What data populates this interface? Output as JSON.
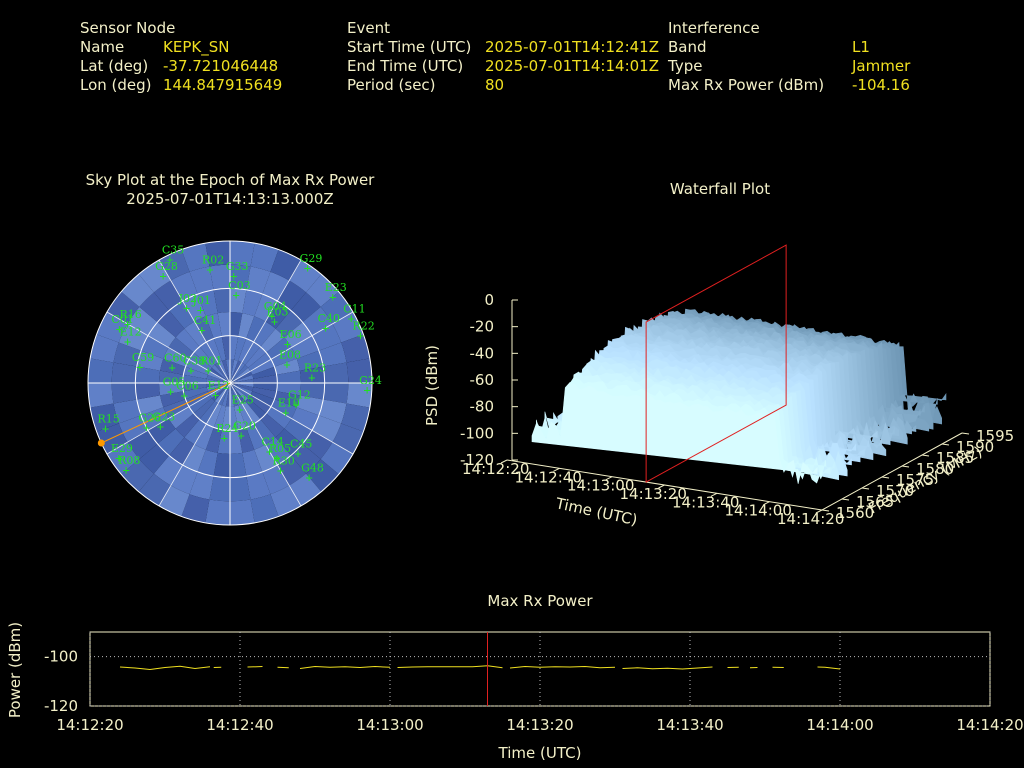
{
  "header": {
    "sensor": {
      "heading": "Sensor Node",
      "name_label": "Name",
      "name_value": "KEPK_SN",
      "lat_label": "Lat (deg)",
      "lat_value": "-37.721046448",
      "lon_label": "Lon (deg)",
      "lon_value": "144.847915649"
    },
    "event": {
      "heading": "Event",
      "start_label": "Start Time (UTC)",
      "start_value": "2025-07-01T14:12:41Z",
      "end_label": "End Time (UTC)",
      "end_value": "2025-07-01T14:14:01Z",
      "period_label": "Period (sec)",
      "period_value": "80"
    },
    "interference": {
      "heading": "Interference",
      "band_label": "Band",
      "band_value": "L1",
      "type_label": "Type",
      "type_value": "Jammer",
      "power_label": "Max Rx Power (dBm)",
      "power_value": "-104.16"
    }
  },
  "colors": {
    "label": "#f3f0c8",
    "value": "#f0e020",
    "satellite": "#22e022",
    "marker": "#ff9900",
    "cursor": "#e02020",
    "background": "#000000"
  },
  "chart_data": [
    {
      "type": "scatter",
      "title": "Sky Plot at the Epoch of Max Rx Power",
      "subtitle": "2025-07-01T14:13:13.000Z",
      "grid": true,
      "elevation_rings_deg": [
        0,
        30,
        60
      ],
      "points": [
        {
          "name": "G29",
          "az": 34,
          "el": 2
        },
        {
          "name": "E23",
          "az": 50,
          "el": 5
        },
        {
          "name": "C11",
          "az": 62,
          "el": 3
        },
        {
          "name": "R22",
          "az": 70,
          "el": 2
        },
        {
          "name": "C40",
          "az": 60,
          "el": 20
        },
        {
          "name": "C35",
          "az": 334,
          "el": 3
        },
        {
          "name": "G28",
          "az": 328,
          "el": 10
        },
        {
          "name": "R02",
          "az": 350,
          "el": 17
        },
        {
          "name": "G33",
          "az": 2,
          "el": 22
        },
        {
          "name": "C03",
          "az": 4,
          "el": 34
        },
        {
          "name": "G04",
          "az": 32,
          "el": 40
        },
        {
          "name": "E03",
          "az": 36,
          "el": 42
        },
        {
          "name": "E06",
          "az": 56,
          "el": 46
        },
        {
          "name": "J01",
          "az": 338,
          "el": 40
        },
        {
          "name": "J02",
          "az": 330,
          "el": 35
        },
        {
          "name": "C41",
          "az": 332,
          "el": 52
        },
        {
          "name": "E08",
          "az": 72,
          "el": 52
        },
        {
          "name": "R23",
          "az": 86,
          "el": 38
        },
        {
          "name": "G24",
          "az": 93,
          "el": 3
        },
        {
          "name": "R16",
          "az": 300,
          "el": 15
        },
        {
          "name": "C01",
          "az": 296,
          "el": 12
        },
        {
          "name": "E12",
          "az": 292,
          "el": 20
        },
        {
          "name": "C59",
          "az": 280,
          "el": 32
        },
        {
          "name": "C60",
          "az": 285,
          "el": 52
        },
        {
          "name": "C38",
          "az": 288,
          "el": 64
        },
        {
          "name": "R01",
          "az": 300,
          "el": 74
        },
        {
          "name": "G05",
          "az": 262,
          "el": 52
        },
        {
          "name": "C06",
          "az": 255,
          "el": 60
        },
        {
          "name": "E12",
          "az": 230,
          "el": 78
        },
        {
          "name": "G12",
          "az": 108,
          "el": 46
        },
        {
          "name": "E10",
          "az": 118,
          "el": 50
        },
        {
          "name": "G23",
          "az": 238,
          "el": 38
        },
        {
          "name": "G26",
          "az": 242,
          "el": 30
        },
        {
          "name": "R24",
          "az": 186,
          "el": 55
        },
        {
          "name": "E25",
          "az": 160,
          "el": 72
        },
        {
          "name": "G20",
          "az": 168,
          "el": 56
        },
        {
          "name": "C14",
          "az": 150,
          "el": 40
        },
        {
          "name": "R05",
          "az": 148,
          "el": 34
        },
        {
          "name": "C45",
          "az": 136,
          "el": 28
        },
        {
          "name": "R30",
          "az": 150,
          "el": 26
        },
        {
          "name": "G48",
          "az": 140,
          "el": 12
        },
        {
          "name": "R15",
          "az": 250,
          "el": 6
        },
        {
          "name": "E29",
          "az": 236,
          "el": 5
        },
        {
          "name": "R08",
          "az": 230,
          "el": 4
        }
      ],
      "marker": {
        "az": 245,
        "el": 0
      }
    },
    {
      "type": "area",
      "title": "Waterfall Plot",
      "xlabel": "Time (UTC)",
      "ylabel": "Frequency (MHz)",
      "zlabel": "PSD (dBm)",
      "x_ticks": [
        "14:12:20",
        "14:12:40",
        "14:13:00",
        "14:13:20",
        "14:13:40",
        "14:14:00",
        "14:14:20"
      ],
      "y_ticks": [
        "1560",
        "1565",
        "1570",
        "1575",
        "1580",
        "1585",
        "1590",
        "1595"
      ],
      "z_ticks": [
        "0",
        "-20",
        "-40",
        "-60",
        "-80",
        "-100",
        "-120"
      ],
      "x_range": [
        "14:12:20",
        "14:14:20"
      ],
      "y_range": [
        1560,
        1595
      ],
      "z_range": [
        -120,
        0
      ],
      "psd_plateau_dBm": -40,
      "psd_floor_dBm": -100,
      "cursor_time": "14:13:13"
    },
    {
      "type": "line",
      "title": "Max Rx Power",
      "xlabel": "Time (UTC)",
      "ylabel": "Power (dBm)",
      "x_ticks": [
        "14:12:20",
        "14:12:40",
        "14:13:00",
        "14:13:20",
        "14:13:40",
        "14:14:00",
        "14:14:20"
      ],
      "y_ticks": [
        "-100",
        "-120"
      ],
      "xlim": [
        "14:12:20",
        "14:14:20"
      ],
      "ylim": [
        -120,
        -90
      ],
      "grid": true,
      "cursor_time": "14:13:13",
      "segments": [
        {
          "x": [
            "14:12:24",
            "14:12:26",
            "14:12:28",
            "14:12:30",
            "14:12:32",
            "14:12:34",
            "14:12:36"
          ],
          "y": [
            -104.2,
            -104.6,
            -105.2,
            -104.4,
            -103.9,
            -104.8,
            -104.1
          ]
        },
        {
          "x": [
            "14:12:36.5",
            "14:12:37.5"
          ],
          "y": [
            -104.4,
            -104.3
          ]
        },
        {
          "x": [
            "14:12:41",
            "14:12:43"
          ],
          "y": [
            -104.2,
            -104.0
          ]
        },
        {
          "x": [
            "14:12:45",
            "14:12:46.5"
          ],
          "y": [
            -104.3,
            -104.5
          ]
        },
        {
          "x": [
            "14:12:48",
            "14:12:50",
            "14:12:52",
            "14:12:54",
            "14:12:56",
            "14:12:58",
            "14:13:00"
          ],
          "y": [
            -104.8,
            -104.0,
            -104.3,
            -104.1,
            -104.4,
            -104.0,
            -104.3
          ]
        },
        {
          "x": [
            "14:13:01",
            "14:13:03",
            "14:13:05",
            "14:13:07",
            "14:13:09",
            "14:13:11",
            "14:13:13",
            "14:13:15"
          ],
          "y": [
            -104.4,
            -104.2,
            -104.1,
            -104.1,
            -104.1,
            -104.1,
            -103.7,
            -104.5
          ]
        },
        {
          "x": [
            "14:13:16",
            "14:13:18",
            "14:13:20",
            "14:13:22",
            "14:13:24",
            "14:13:26",
            "14:13:28",
            "14:13:30"
          ],
          "y": [
            -104.6,
            -104.0,
            -104.3,
            -104.1,
            -104.2,
            -104.0,
            -104.5,
            -104.3
          ]
        },
        {
          "x": [
            "14:13:31",
            "14:13:33",
            "14:13:35",
            "14:13:37",
            "14:13:39",
            "14:13:41",
            "14:13:43"
          ],
          "y": [
            -104.8,
            -104.5,
            -104.9,
            -104.7,
            -105.0,
            -104.6,
            -104.2
          ]
        },
        {
          "x": [
            "14:13:45",
            "14:13:46.5"
          ],
          "y": [
            -104.4,
            -104.3
          ]
        },
        {
          "x": [
            "14:13:48",
            "14:13:49"
          ],
          "y": [
            -104.5,
            -104.4
          ]
        },
        {
          "x": [
            "14:13:51",
            "14:13:52.5"
          ],
          "y": [
            -104.3,
            -104.4
          ]
        },
        {
          "x": [
            "14:13:57",
            "14:13:58",
            "14:14:00"
          ],
          "y": [
            -104.2,
            -104.3,
            -105.0
          ]
        }
      ]
    }
  ]
}
